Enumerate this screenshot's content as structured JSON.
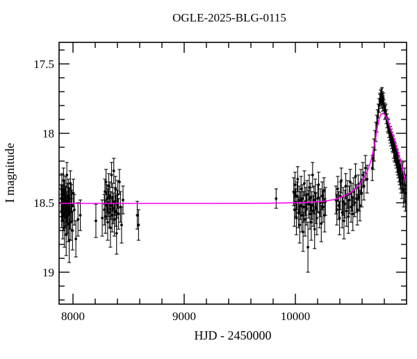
{
  "title": "OGLE-2025-BLG-0115",
  "chart_data": {
    "type": "scatter",
    "title": "OGLE-2025-BLG-0115",
    "xlabel": "HJD - 2450000",
    "ylabel": "I magnitude",
    "xlim": [
      7875,
      11000
    ],
    "ylim": [
      17.345,
      19.23
    ],
    "y_axis_inverted": true,
    "grid": false,
    "legend": null,
    "x_major_ticks": [
      8000,
      9000,
      10000
    ],
    "x_major_labels": [
      "8000",
      "9000",
      "10000"
    ],
    "x_minor_ticks": [
      8200,
      8400,
      8600,
      8800,
      9200,
      9400,
      9600,
      9800,
      10200,
      10400,
      10600,
      10800
    ],
    "y_major_ticks": [
      17.5,
      18,
      18.5,
      19
    ],
    "y_major_labels": [
      "17.5",
      "18",
      "18.5",
      "19"
    ],
    "y_minor_ticks": [
      17.4,
      17.6,
      17.7,
      17.8,
      17.9,
      18.1,
      18.2,
      18.3,
      18.4,
      18.6,
      18.7,
      18.8,
      18.9,
      19.1,
      19.2
    ],
    "colors": {
      "points": "#000000",
      "model": "#ff00f0",
      "frame": "#000000",
      "background": "#ffffff"
    },
    "baseline_magnitude": 18.505,
    "model_curve": [
      [
        7875,
        18.505
      ],
      [
        8600,
        18.505
      ],
      [
        9200,
        18.505
      ],
      [
        9800,
        18.503
      ],
      [
        10100,
        18.498
      ],
      [
        10250,
        18.49
      ],
      [
        10350,
        18.477
      ],
      [
        10420,
        18.458
      ],
      [
        10470,
        18.44
      ],
      [
        10520,
        18.413
      ],
      [
        10555,
        18.39
      ],
      [
        10585,
        18.36
      ],
      [
        10610,
        18.33
      ],
      [
        10635,
        18.295
      ],
      [
        10658,
        18.25
      ],
      [
        10678,
        18.2
      ],
      [
        10695,
        18.145
      ],
      [
        10710,
        18.085
      ],
      [
        10725,
        18.02
      ],
      [
        10738,
        17.955
      ],
      [
        10750,
        17.905
      ],
      [
        10762,
        17.875
      ],
      [
        10773,
        17.86
      ],
      [
        10788,
        17.855
      ],
      [
        10800,
        17.862
      ],
      [
        10815,
        17.88
      ],
      [
        10835,
        17.915
      ],
      [
        10860,
        17.975
      ],
      [
        10894,
        18.055
      ],
      [
        10925,
        18.14
      ],
      [
        10956,
        18.225
      ],
      [
        10980,
        18.31
      ],
      [
        11000,
        18.38
      ]
    ],
    "points": [
      [
        7894,
        18.47,
        0.1
      ],
      [
        7897,
        18.56,
        0.12
      ],
      [
        7900,
        18.38,
        0.09
      ],
      [
        7903,
        18.52,
        0.11
      ],
      [
        7906,
        18.45,
        0.08
      ],
      [
        7909,
        18.63,
        0.13
      ],
      [
        7912,
        18.5,
        0.1
      ],
      [
        7915,
        18.34,
        0.09
      ],
      [
        7918,
        18.58,
        0.12
      ],
      [
        7921,
        18.44,
        0.1
      ],
      [
        7924,
        18.68,
        0.14
      ],
      [
        7927,
        18.51,
        0.1
      ],
      [
        7930,
        18.4,
        0.09
      ],
      [
        7933,
        18.56,
        0.11
      ],
      [
        7936,
        18.48,
        0.1
      ],
      [
        7939,
        18.73,
        0.15
      ],
      [
        7942,
        18.53,
        0.11
      ],
      [
        7945,
        18.3,
        0.09
      ],
      [
        7948,
        18.6,
        0.12
      ],
      [
        7951,
        18.46,
        0.1
      ],
      [
        7954,
        18.55,
        0.11
      ],
      [
        7957,
        18.65,
        0.13
      ],
      [
        7960,
        18.42,
        0.09
      ],
      [
        7963,
        18.5,
        0.1
      ],
      [
        7966,
        18.77,
        0.16
      ],
      [
        7969,
        18.49,
        0.1
      ],
      [
        7973,
        18.57,
        0.12
      ],
      [
        7977,
        18.36,
        0.09
      ],
      [
        7981,
        18.64,
        0.13
      ],
      [
        7985,
        18.47,
        0.1
      ],
      [
        7990,
        18.52,
        0.11
      ],
      [
        7996,
        18.7,
        0.14
      ],
      [
        8003,
        18.43,
        0.1
      ],
      [
        8012,
        18.55,
        0.11
      ],
      [
        8026,
        18.76,
        0.13
      ],
      [
        8045,
        18.62,
        0.12
      ],
      [
        8066,
        18.59,
        0.11
      ],
      [
        8206,
        18.63,
        0.12
      ],
      [
        8263,
        18.61,
        0.13
      ],
      [
        8282,
        18.55,
        0.11
      ],
      [
        8287,
        18.42,
        0.09
      ],
      [
        8292,
        18.6,
        0.12
      ],
      [
        8297,
        18.35,
        0.09
      ],
      [
        8302,
        18.52,
        0.1
      ],
      [
        8307,
        18.47,
        0.1
      ],
      [
        8312,
        18.64,
        0.13
      ],
      [
        8317,
        18.5,
        0.1
      ],
      [
        8322,
        18.38,
        0.09
      ],
      [
        8327,
        18.57,
        0.11
      ],
      [
        8332,
        18.45,
        0.1
      ],
      [
        8337,
        18.68,
        0.14
      ],
      [
        8342,
        18.52,
        0.1
      ],
      [
        8347,
        18.3,
        0.09
      ],
      [
        8352,
        18.59,
        0.12
      ],
      [
        8357,
        18.46,
        0.1
      ],
      [
        8362,
        18.54,
        0.11
      ],
      [
        8367,
        18.27,
        0.09
      ],
      [
        8372,
        18.62,
        0.12
      ],
      [
        8377,
        18.49,
        0.1
      ],
      [
        8382,
        18.4,
        0.09
      ],
      [
        8387,
        18.56,
        0.11
      ],
      [
        8392,
        18.72,
        0.15
      ],
      [
        8397,
        18.51,
        0.1
      ],
      [
        8402,
        18.44,
        0.1
      ],
      [
        8410,
        18.58,
        0.11
      ],
      [
        8418,
        18.35,
        0.09
      ],
      [
        8427,
        18.53,
        0.11
      ],
      [
        8437,
        18.66,
        0.13
      ],
      [
        8450,
        18.48,
        0.1
      ],
      [
        8578,
        18.59,
        0.1
      ],
      [
        8590,
        18.66,
        0.11
      ],
      [
        9827,
        18.47,
        0.07
      ],
      [
        9985,
        18.42,
        0.1
      ],
      [
        9991,
        18.55,
        0.12
      ],
      [
        9997,
        18.37,
        0.09
      ],
      [
        10003,
        18.5,
        0.1
      ],
      [
        10009,
        18.61,
        0.12
      ],
      [
        10015,
        18.45,
        0.1
      ],
      [
        10021,
        18.33,
        0.09
      ],
      [
        10027,
        18.57,
        0.11
      ],
      [
        10033,
        18.48,
        0.1
      ],
      [
        10039,
        18.66,
        0.13
      ],
      [
        10045,
        18.52,
        0.1
      ],
      [
        10051,
        18.4,
        0.09
      ],
      [
        10057,
        18.59,
        0.12
      ],
      [
        10063,
        18.47,
        0.1
      ],
      [
        10069,
        18.71,
        0.14
      ],
      [
        10075,
        18.53,
        0.11
      ],
      [
        10081,
        18.36,
        0.09
      ],
      [
        10087,
        18.62,
        0.12
      ],
      [
        10093,
        18.49,
        0.1
      ],
      [
        10099,
        18.55,
        0.11
      ],
      [
        10105,
        18.44,
        0.1
      ],
      [
        10113,
        18.82,
        0.18
      ],
      [
        10119,
        18.51,
        0.1
      ],
      [
        10125,
        18.39,
        0.09
      ],
      [
        10131,
        18.58,
        0.11
      ],
      [
        10137,
        18.46,
        0.1
      ],
      [
        10143,
        18.64,
        0.13
      ],
      [
        10149,
        18.52,
        0.1
      ],
      [
        10155,
        18.3,
        0.09
      ],
      [
        10161,
        18.56,
        0.11
      ],
      [
        10167,
        18.48,
        0.1
      ],
      [
        10173,
        18.69,
        0.14
      ],
      [
        10179,
        18.43,
        0.1
      ],
      [
        10185,
        18.54,
        0.11
      ],
      [
        10193,
        18.61,
        0.12
      ],
      [
        10201,
        18.47,
        0.1
      ],
      [
        10209,
        18.37,
        0.09
      ],
      [
        10217,
        18.57,
        0.11
      ],
      [
        10225,
        18.5,
        0.1
      ],
      [
        10233,
        18.65,
        0.13
      ],
      [
        10241,
        18.45,
        0.1
      ],
      [
        10249,
        18.53,
        0.11
      ],
      [
        10257,
        18.41,
        0.09
      ],
      [
        10263,
        18.59,
        0.12
      ],
      [
        10270,
        18.49,
        0.1
      ],
      [
        10365,
        18.48,
        0.1
      ],
      [
        10373,
        18.55,
        0.11
      ],
      [
        10381,
        18.4,
        0.09
      ],
      [
        10389,
        18.52,
        0.1
      ],
      [
        10397,
        18.61,
        0.12
      ],
      [
        10405,
        18.45,
        0.1
      ],
      [
        10413,
        18.34,
        0.09
      ],
      [
        10421,
        18.57,
        0.11
      ],
      [
        10429,
        18.49,
        0.1
      ],
      [
        10437,
        18.63,
        0.13
      ],
      [
        10445,
        18.51,
        0.1
      ],
      [
        10453,
        18.38,
        0.09
      ],
      [
        10461,
        18.56,
        0.11
      ],
      [
        10469,
        18.44,
        0.1
      ],
      [
        10477,
        18.6,
        0.12
      ],
      [
        10485,
        18.48,
        0.1
      ],
      [
        10493,
        18.35,
        0.09
      ],
      [
        10501,
        18.53,
        0.11
      ],
      [
        10509,
        18.46,
        0.1
      ],
      [
        10517,
        18.58,
        0.12
      ],
      [
        10525,
        18.42,
        0.1
      ],
      [
        10533,
        18.5,
        0.1
      ],
      [
        10541,
        18.31,
        0.09
      ],
      [
        10549,
        18.47,
        0.1
      ],
      [
        10557,
        18.55,
        0.11
      ],
      [
        10565,
        18.39,
        0.09
      ],
      [
        10573,
        18.46,
        0.1
      ],
      [
        10581,
        18.52,
        0.11
      ],
      [
        10589,
        18.35,
        0.09
      ],
      [
        10597,
        18.43,
        0.1
      ],
      [
        10607,
        18.3,
        0.09
      ],
      [
        10617,
        18.38,
        0.1
      ],
      [
        10630,
        18.25,
        0.09
      ],
      [
        10645,
        18.33,
        0.1
      ],
      [
        10692,
        18.25,
        0.09
      ],
      [
        10700,
        18.18,
        0.08
      ],
      [
        10708,
        18.12,
        0.08
      ],
      [
        10716,
        18.05,
        0.07
      ],
      [
        10724,
        17.99,
        0.07
      ],
      [
        10732,
        17.93,
        0.06
      ],
      [
        10739,
        17.88,
        0.05
      ],
      [
        10746,
        17.84,
        0.05
      ],
      [
        10753,
        17.8,
        0.05
      ],
      [
        10760,
        17.76,
        0.04
      ],
      [
        10763,
        17.75,
        0.04
      ],
      [
        10767,
        17.73,
        0.04
      ],
      [
        10771,
        17.77,
        0.05
      ],
      [
        10774,
        17.72,
        0.04
      ],
      [
        10779,
        17.71,
        0.04
      ],
      [
        10781,
        17.74,
        0.04
      ],
      [
        10785,
        17.79,
        0.05
      ],
      [
        10788,
        17.77,
        0.04
      ],
      [
        10791,
        17.75,
        0.04
      ],
      [
        10794,
        17.8,
        0.04
      ],
      [
        10800,
        17.82,
        0.04
      ],
      [
        10806,
        17.85,
        0.05
      ],
      [
        10812,
        17.84,
        0.05
      ],
      [
        10818,
        17.88,
        0.05
      ],
      [
        10824,
        17.91,
        0.05
      ],
      [
        10830,
        17.94,
        0.05
      ],
      [
        10836,
        17.95,
        0.05
      ],
      [
        10842,
        17.98,
        0.05
      ],
      [
        10848,
        18.0,
        0.05
      ],
      [
        10854,
        18.01,
        0.06
      ],
      [
        10860,
        18.03,
        0.06
      ],
      [
        10866,
        18.05,
        0.06
      ],
      [
        10872,
        18.07,
        0.06
      ],
      [
        10878,
        18.08,
        0.06
      ],
      [
        10884,
        18.11,
        0.07
      ],
      [
        10890,
        18.13,
        0.07
      ],
      [
        10896,
        18.14,
        0.07
      ],
      [
        10902,
        18.16,
        0.07
      ],
      [
        10908,
        18.18,
        0.07
      ],
      [
        10914,
        18.2,
        0.08
      ],
      [
        10920,
        18.22,
        0.08
      ],
      [
        10926,
        18.24,
        0.08
      ],
      [
        10932,
        18.27,
        0.08
      ],
      [
        10938,
        18.28,
        0.09
      ],
      [
        10944,
        18.31,
        0.09
      ],
      [
        10950,
        18.33,
        0.1
      ],
      [
        10958,
        18.36,
        0.11
      ],
      [
        10966,
        18.32,
        0.11
      ],
      [
        10974,
        18.41,
        0.12
      ],
      [
        10982,
        18.37,
        0.12
      ],
      [
        10990,
        18.43,
        0.13
      ]
    ]
  }
}
